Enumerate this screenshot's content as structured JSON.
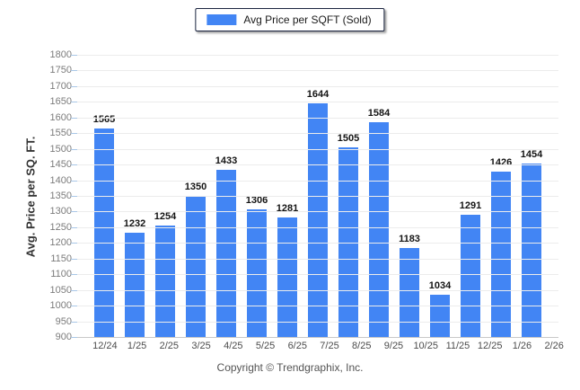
{
  "legend": {
    "label": "Avg Price per SQFT (Sold)",
    "swatch_color": "#4285F4"
  },
  "chart_data": {
    "type": "bar",
    "title": "",
    "series_name": "Avg Price per SQFT (Sold)",
    "categories": [
      "12/24",
      "1/25",
      "2/25",
      "3/25",
      "4/25",
      "5/25",
      "6/25",
      "7/25",
      "8/25",
      "9/25",
      "10/25",
      "11/25",
      "12/25",
      "1/26",
      "2/26"
    ],
    "values": [
      1565,
      1232,
      1254,
      1350,
      1433,
      1306,
      1281,
      1644,
      1505,
      1584,
      1183,
      1034,
      1291,
      1426,
      1454
    ],
    "xlabel": "",
    "ylabel": "Avg. Price per SQ. FT.",
    "ylim": [
      900,
      1800
    ],
    "ytick_step": 50,
    "grid": true,
    "legend_position": "top-center",
    "bar_color": "#4285F4",
    "value_labels": true
  },
  "footer": {
    "copyright": "Copyright © Trendgraphix, Inc."
  }
}
